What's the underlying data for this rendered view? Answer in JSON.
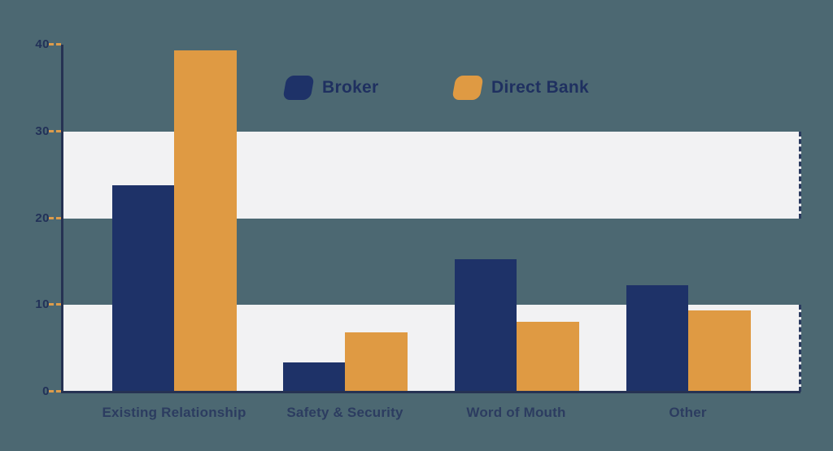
{
  "colors": {
    "background": "#4c6872",
    "broker": "#1e3268",
    "direct_bank": "#df9a43",
    "stripe": "#f2f2f3",
    "stripe_edge": "#2a3a5e",
    "axis": "#263253",
    "tick_dash": "#dd9c4b",
    "ytick_label": "#223158",
    "category_label": "#2c3c60",
    "legend_text": "#1f3060"
  },
  "chart_data": {
    "type": "bar",
    "title": "",
    "xlabel": "",
    "ylabel": "",
    "categories": [
      "Existing Relationship",
      "Safety & Security",
      "Word of Mouth",
      "Other"
    ],
    "series": [
      {
        "name": "Broker",
        "color_key": "broker",
        "values": [
          23.8,
          3.4,
          15.3,
          12.3
        ]
      },
      {
        "name": "Direct Bank",
        "color_key": "direct_bank",
        "values": [
          39.3,
          6.8,
          8.1,
          9.4
        ]
      }
    ],
    "ylim": [
      0,
      40
    ],
    "yticks": [
      0,
      10,
      20,
      30,
      40
    ],
    "shaded_bands": [
      [
        20,
        30
      ],
      [
        0,
        10
      ]
    ],
    "grid": "alternating horizontal light bands, no gridlines",
    "legend_position": "top-center"
  }
}
